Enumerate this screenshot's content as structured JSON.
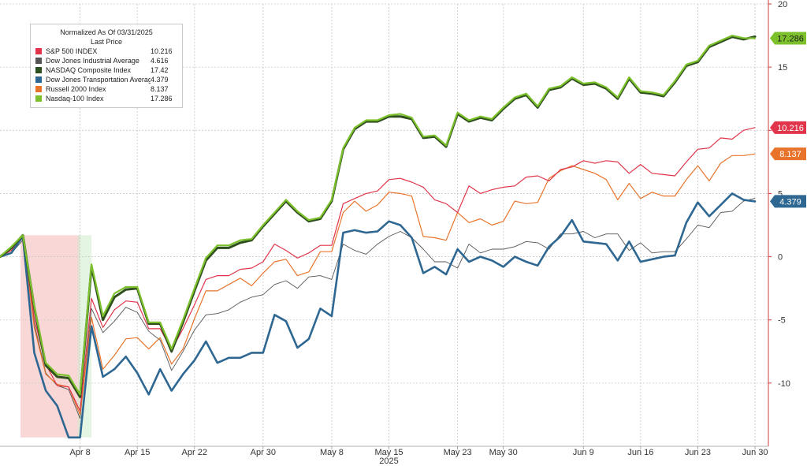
{
  "chart_data": {
    "type": "line",
    "legend": {
      "title": "Normalized As Of 03/31/2025",
      "subtitle": "Last Price",
      "placement": "top-left"
    },
    "highlight_regions": [
      {
        "from": 2,
        "to": 7,
        "color": "#f4b6b6"
      },
      {
        "from": 7,
        "to": 8,
        "color": "#cdeccd"
      }
    ],
    "x_ticks": [
      {
        "index": 7,
        "label": "Apr 8"
      },
      {
        "index": 12,
        "label": "Apr 15"
      },
      {
        "index": 17,
        "label": "Apr 22"
      },
      {
        "index": 23,
        "label": "Apr 30"
      },
      {
        "index": 29,
        "label": "May 8"
      },
      {
        "index": 34,
        "label": "May 15"
      },
      {
        "index": 40,
        "label": "May 23"
      },
      {
        "index": 44,
        "label": "May 30"
      },
      {
        "index": 51,
        "label": "Jun 9"
      },
      {
        "index": 56,
        "label": "Jun 16"
      },
      {
        "index": 61,
        "label": "Jun 23"
      },
      {
        "index": 66,
        "label": "Jun 30"
      }
    ],
    "year_label": {
      "index": 34,
      "label": "2025"
    },
    "ylim": [
      -14.5,
      20
    ],
    "y_ticks": [
      -10,
      -5,
      0,
      5,
      10,
      15,
      20
    ],
    "grid": true,
    "series": [
      {
        "name": "S&P 500 INDEX",
        "last": "10.216",
        "color": "#e0354a",
        "width": 1.2,
        "values": [
          0,
          0.5,
          1.6,
          -4.9,
          -8.5,
          -10.2,
          -10.3,
          -12.2,
          -3.3,
          -5.6,
          -4.2,
          -3.5,
          -3.6,
          -5.7,
          -5.7,
          -7.4,
          -5.7,
          -3.8,
          -1.8,
          -1.5,
          -1.5,
          -1,
          -0.9,
          -0.4,
          1,
          0.5,
          -0.1,
          0.3,
          0.9,
          0.9,
          4.2,
          4.6,
          5,
          5.2,
          6.1,
          6.2,
          5.9,
          5.5,
          4.5,
          4.2,
          3.5,
          5.6,
          5,
          5.3,
          5.5,
          5.6,
          6.3,
          6.4,
          6,
          6.9,
          7.1,
          7.6,
          7.4,
          7.6,
          7.5,
          6.6,
          7.3,
          6.6,
          6.5,
          6.4,
          7.5,
          8.5,
          8.6,
          9.4,
          9.3,
          10,
          10.216
        ]
      },
      {
        "name": "Dow Jones Industrial Average",
        "last": "4.616",
        "color": "#555555",
        "width": 0.9,
        "values": [
          0,
          0.3,
          1.3,
          -5.3,
          -9.2,
          -10.2,
          -10.5,
          -12.8,
          -4.1,
          -6,
          -5.1,
          -4,
          -4.4,
          -5.9,
          -6.6,
          -9,
          -7.5,
          -5.8,
          -4.6,
          -4.5,
          -4.2,
          -3.6,
          -3.2,
          -3,
          -2.2,
          -1.9,
          -2.5,
          -1.6,
          -1.5,
          -1.8,
          1,
          0.5,
          0.2,
          1,
          1.6,
          2,
          1.5,
          0.6,
          -0.4,
          -0.4,
          -0.9,
          1,
          0.3,
          0.6,
          0.6,
          0.8,
          1.2,
          1.1,
          0.6,
          1.8,
          1.8,
          2,
          1.5,
          1.8,
          1.8,
          0.5,
          1.1,
          0.3,
          0.4,
          0.4,
          1.4,
          2.5,
          2.3,
          3.5,
          3.6,
          4.4,
          4.616
        ]
      },
      {
        "name": "NASDAQ Composite Index",
        "last": "17.42",
        "color": "#2f4f1f",
        "width": 3,
        "values": [
          0,
          0.7,
          1.7,
          -4,
          -8.6,
          -9.5,
          -9.6,
          -11.1,
          -0.8,
          -5,
          -3.2,
          -2.6,
          -2.5,
          -5.3,
          -5.3,
          -7.5,
          -5.2,
          -2.7,
          -0.3,
          0.7,
          0.7,
          1.1,
          1.3,
          2.4,
          3.4,
          4.4,
          3.5,
          2.8,
          3,
          4.4,
          8.5,
          10.1,
          10.7,
          10.7,
          11.1,
          11.1,
          10.9,
          9.4,
          9.5,
          8.7,
          11.3,
          10.7,
          11,
          10.8,
          11.7,
          12.5,
          12.8,
          11.8,
          13.2,
          13.4,
          14.1,
          13.6,
          13.7,
          13.3,
          12.5,
          14.1,
          13,
          12.9,
          12.7,
          13.8,
          15.1,
          15.4,
          16.6,
          17,
          17.4,
          17.2,
          17.42
        ]
      },
      {
        "name": "Dow Jones Transportation Average",
        "last": "4.379",
        "color": "#2e6791",
        "width": 2.6,
        "values": [
          0,
          0.3,
          1.6,
          -7.6,
          -10.6,
          -11.8,
          -14.3,
          -14.3,
          -5.5,
          -9.5,
          -8.9,
          -7.9,
          -9.2,
          -10.9,
          -8.9,
          -10.6,
          -9.3,
          -8.2,
          -6.7,
          -8.4,
          -8,
          -8,
          -7.6,
          -7.6,
          -4.6,
          -5.1,
          -7.2,
          -6.5,
          -4.1,
          -4.7,
          1.9,
          2.1,
          1.9,
          2,
          2.8,
          2.5,
          1.5,
          -1.3,
          -0.8,
          -1.4,
          0.6,
          -0.4,
          0,
          -0.3,
          -0.8,
          0,
          -0.4,
          -0.7,
          0.8,
          1.6,
          2.9,
          1.2,
          1.1,
          1,
          -0.3,
          1.2,
          -0.4,
          -0.2,
          0,
          0.1,
          2.7,
          4.3,
          3.2,
          4.1,
          5,
          4.5,
          4.379
        ]
      },
      {
        "name": "Russell 2000 Index",
        "last": "8.137",
        "color": "#e8742c",
        "width": 1.2,
        "values": [
          0,
          0.5,
          1.6,
          -5.6,
          -9.3,
          -10.1,
          -10.3,
          -12.5,
          -4.8,
          -8.9,
          -7.8,
          -6.5,
          -6.4,
          -7.3,
          -6.4,
          -8.5,
          -7.3,
          -4.9,
          -2.7,
          -2.7,
          -2.2,
          -1.7,
          -2.3,
          -1.3,
          -0.4,
          -0.2,
          -1.5,
          -1.2,
          0.4,
          0.4,
          3.5,
          4.4,
          3.6,
          4.1,
          5.1,
          5,
          4.8,
          1.6,
          1.5,
          1.3,
          3.5,
          2.7,
          3,
          2.5,
          2.8,
          4.4,
          4.2,
          4.3,
          6.2,
          6.8,
          7.2,
          6.9,
          6.6,
          6.1,
          4.5,
          5.8,
          4.6,
          5.1,
          4.8,
          4.8,
          6.1,
          7.2,
          6,
          7.4,
          8,
          8,
          8.137
        ]
      },
      {
        "name": "Nasdaq-100 Index",
        "last": "17.286",
        "color": "#7cc12b",
        "width": 2.2,
        "values": [
          0,
          0.8,
          1.7,
          -3.9,
          -8.4,
          -9.3,
          -9.4,
          -10.9,
          -0.6,
          -4.7,
          -2.9,
          -2.4,
          -2.4,
          -5.2,
          -5.2,
          -7.3,
          -5,
          -2.5,
          -0.1,
          0.9,
          0.9,
          1.3,
          1.4,
          2.5,
          3.5,
          4.5,
          3.6,
          2.9,
          3.1,
          4.5,
          8.6,
          10.2,
          10.8,
          10.8,
          11.2,
          11.3,
          11,
          9.5,
          9.6,
          8.8,
          11.4,
          10.8,
          11.1,
          10.9,
          11.8,
          12.6,
          12.9,
          11.9,
          13.3,
          13.5,
          14.2,
          13.7,
          13.8,
          13.4,
          12.6,
          14.2,
          13.1,
          13,
          12.8,
          13.9,
          15.2,
          15.5,
          16.7,
          17.1,
          17.5,
          17.3,
          17.286
        ]
      }
    ]
  }
}
